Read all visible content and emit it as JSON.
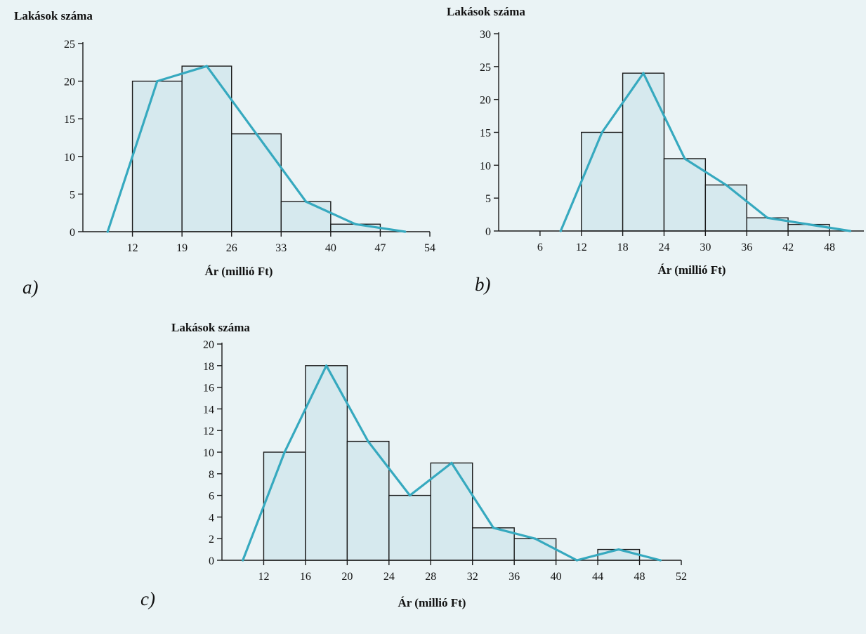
{
  "chart_data": [
    {
      "id": "a",
      "type": "bar",
      "panel_label": "a)",
      "title": "",
      "ylabel": "Lakások száma",
      "xlabel": "Ár (millió Ft)",
      "ylim": [
        0,
        25
      ],
      "yticks": [
        0,
        5,
        10,
        15,
        20,
        25
      ],
      "xlim": [
        5,
        54
      ],
      "xticks": [
        12,
        19,
        26,
        33,
        40,
        47,
        54
      ],
      "bins": [
        {
          "from": 12,
          "to": 19,
          "value": 20
        },
        {
          "from": 19,
          "to": 26,
          "value": 22
        },
        {
          "from": 26,
          "to": 33,
          "value": 13
        },
        {
          "from": 33,
          "to": 40,
          "value": 4
        },
        {
          "from": 40,
          "to": 47,
          "value": 1
        }
      ],
      "polygon": {
        "x": [
          8.5,
          15.5,
          22.5,
          29.5,
          36.5,
          43.5,
          50.5
        ],
        "y": [
          0,
          20,
          22,
          13,
          4,
          1,
          0
        ]
      },
      "grid": false,
      "legend": false
    },
    {
      "id": "b",
      "type": "bar",
      "panel_label": "b)",
      "title": "",
      "ylabel": "Lakások száma",
      "xlabel": "Ár (millió Ft)",
      "ylim": [
        0,
        30
      ],
      "yticks": [
        0,
        5,
        10,
        15,
        20,
        25,
        30
      ],
      "xlim": [
        0,
        53
      ],
      "xticks": [
        6,
        12,
        18,
        24,
        30,
        36,
        42,
        48
      ],
      "bins": [
        {
          "from": 12,
          "to": 18,
          "value": 15
        },
        {
          "from": 18,
          "to": 24,
          "value": 24
        },
        {
          "from": 24,
          "to": 30,
          "value": 11
        },
        {
          "from": 30,
          "to": 36,
          "value": 7
        },
        {
          "from": 36,
          "to": 42,
          "value": 2
        },
        {
          "from": 42,
          "to": 48,
          "value": 1
        }
      ],
      "polygon": {
        "x": [
          9,
          15,
          21,
          27,
          33,
          39,
          45,
          51
        ],
        "y": [
          0,
          15,
          24,
          11,
          7,
          2,
          1,
          0
        ]
      },
      "grid": false,
      "legend": false
    },
    {
      "id": "c",
      "type": "bar",
      "panel_label": "c)",
      "title": "",
      "ylabel": "Lakások száma",
      "xlabel": "Ár (millió Ft)",
      "ylim": [
        0,
        20
      ],
      "yticks": [
        0,
        2,
        4,
        6,
        8,
        10,
        12,
        14,
        16,
        18,
        20
      ],
      "xlim": [
        8,
        52
      ],
      "xticks": [
        12,
        16,
        20,
        24,
        28,
        32,
        36,
        40,
        44,
        48,
        52
      ],
      "bins": [
        {
          "from": 12,
          "to": 16,
          "value": 10
        },
        {
          "from": 16,
          "to": 20,
          "value": 18
        },
        {
          "from": 20,
          "to": 24,
          "value": 11
        },
        {
          "from": 24,
          "to": 28,
          "value": 6
        },
        {
          "from": 28,
          "to": 32,
          "value": 9
        },
        {
          "from": 32,
          "to": 36,
          "value": 3
        },
        {
          "from": 36,
          "to": 40,
          "value": 2
        },
        {
          "from": 40,
          "to": 44,
          "value": 0
        },
        {
          "from": 44,
          "to": 48,
          "value": 1
        }
      ],
      "polygon": {
        "x": [
          10,
          14,
          18,
          22,
          26,
          30,
          34,
          38,
          42,
          46,
          50
        ],
        "y": [
          0,
          10,
          18,
          11,
          6,
          9,
          3,
          2,
          0,
          1,
          0
        ]
      },
      "grid": false,
      "legend": false
    }
  ],
  "colors": {
    "bar_fill": "#d6e9ee",
    "bar_stroke": "#1a1a1a",
    "polygon": "#36a9bf",
    "background": "#eaf3f5"
  }
}
